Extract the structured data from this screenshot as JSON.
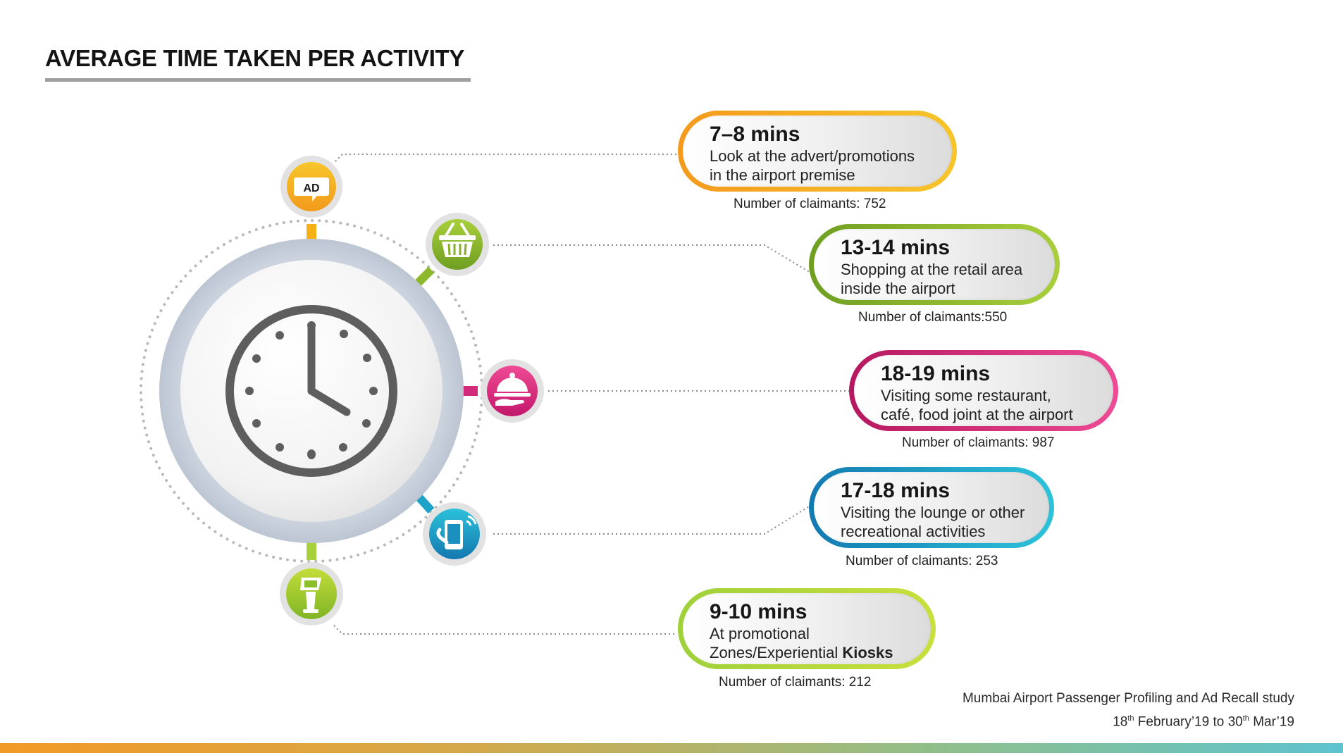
{
  "header": {
    "title": "AVERAGE TIME TAKEN PER ACTIVITY"
  },
  "center": {
    "icon": "clock-icon"
  },
  "activities": [
    {
      "icon": "ad-icon",
      "icon_text": "AD",
      "color": "#f5b116",
      "time": "7–8 mins",
      "desc_line1": "Look at the advert/promotions",
      "desc_line2": "in the airport premise",
      "claimants": "Number of claimants: 752"
    },
    {
      "icon": "basket-icon",
      "color": "#8db82d",
      "time": "13-14 mins",
      "desc_line1": "Shopping at the retail area",
      "desc_line2": "inside the airport",
      "claimants": "Number of claimants:550"
    },
    {
      "icon": "food-cloche-icon",
      "color": "#e0307e",
      "time": "18-19 mins",
      "desc_line1": "Visiting some restaurant,",
      "desc_line2": "café, food joint at the airport",
      "claimants": "Number of claimants: 987"
    },
    {
      "icon": "mobile-phone-icon",
      "color": "#1ea3c8",
      "time": "17-18 mins",
      "desc_line1": "Visiting the lounge or other",
      "desc_line2": "recreational activities",
      "claimants": "Number of claimants:  253"
    },
    {
      "icon": "kiosk-icon",
      "color": "#a6d13a",
      "time": "9-10 mins",
      "desc_line1": "At promotional",
      "desc_line2_prefix": "Zones/Experiential ",
      "desc_line2_bold": "Kiosks",
      "claimants": "Number of claimants: 212"
    }
  ],
  "source": {
    "line1": "Mumbai Airport Passenger Profiling and Ad Recall study",
    "date1_day": "18",
    "date1_suffix": "th",
    "date1_rest": " February’19 to ",
    "date2_day": "30",
    "date2_suffix": "th",
    "date2_rest": " Mar’19"
  }
}
